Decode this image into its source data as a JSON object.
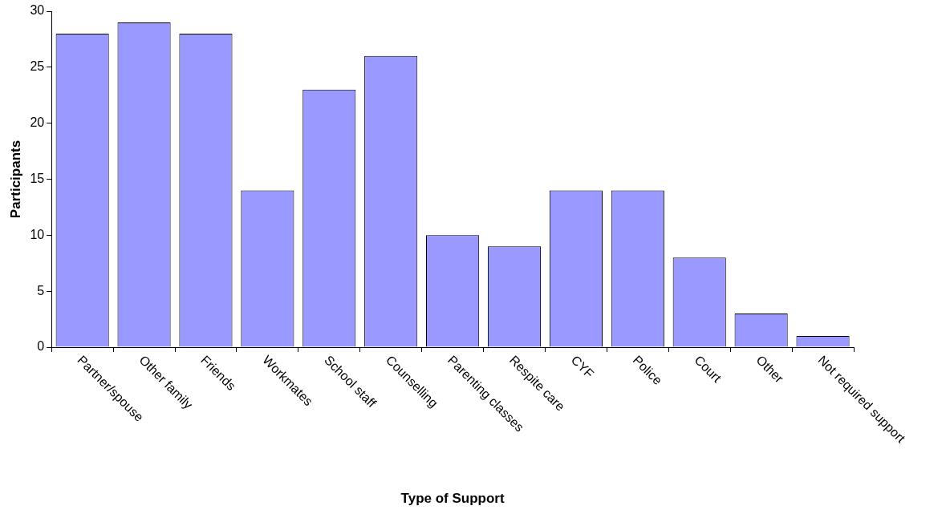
{
  "chart_data": {
    "type": "bar",
    "xlabel": "Type of Support",
    "ylabel": "Participants",
    "categories": [
      "Partner/spouse",
      "Other family",
      "Friends",
      "Workmates",
      "School staff",
      "Counselling",
      "Parenting classes",
      "Respite care",
      "CYF",
      "Police",
      "Court",
      "Other",
      "Not required support"
    ],
    "values": [
      28,
      29,
      28,
      14,
      23,
      26,
      10,
      9,
      14,
      14,
      8,
      3,
      1
    ],
    "color": "#9999ff",
    "ylim": [
      0,
      30
    ],
    "yticks": [
      0,
      5,
      10,
      15,
      20,
      25,
      30
    ],
    "grid": false,
    "legend": false
  }
}
